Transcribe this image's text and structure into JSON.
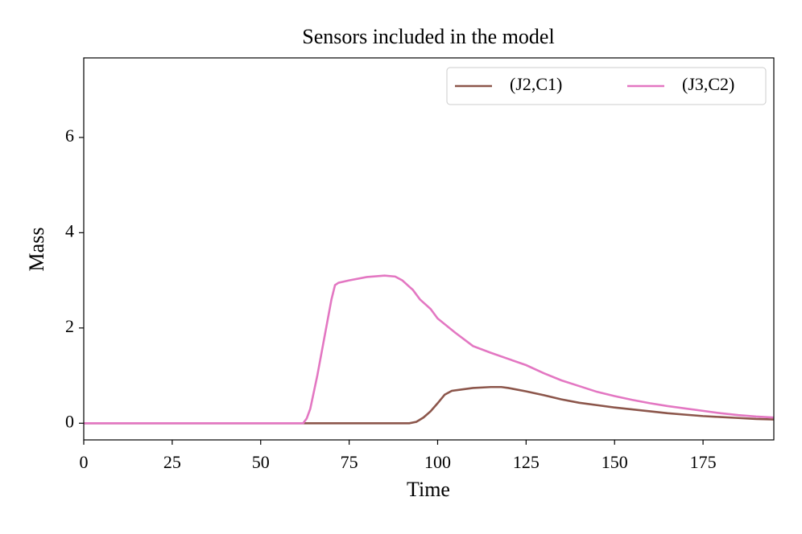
{
  "chart_data": {
    "type": "line",
    "title": "Sensors included in the model",
    "x_label": "Time",
    "y_label": "Mass",
    "xlim": [
      0,
      195
    ],
    "ylim": [
      -0.35,
      7.67
    ],
    "xticks": [
      0,
      25,
      50,
      75,
      100,
      125,
      150,
      175
    ],
    "yticks": [
      0,
      2,
      4,
      6
    ],
    "legend": "upper right",
    "grid": false,
    "series": [
      {
        "name": "(J2,C1)",
        "color": "#8c564b",
        "x": [
          0,
          25,
          50,
          75,
          92,
          94,
          96,
          98,
          100,
          102,
          104,
          107,
          110,
          115,
          118,
          120,
          125,
          130,
          135,
          140,
          145,
          150,
          155,
          160,
          165,
          170,
          175,
          180,
          185,
          190,
          195
        ],
        "values": [
          0,
          0,
          0,
          0,
          0,
          0.03,
          0.12,
          0.25,
          0.42,
          0.6,
          0.68,
          0.71,
          0.74,
          0.76,
          0.76,
          0.74,
          0.67,
          0.59,
          0.5,
          0.43,
          0.38,
          0.33,
          0.29,
          0.25,
          0.21,
          0.18,
          0.15,
          0.13,
          0.11,
          0.09,
          0.08
        ]
      },
      {
        "name": "(J3,C2)",
        "color": "#e377c2",
        "x": [
          0,
          25,
          50,
          62,
          63,
          64,
          66,
          68,
          70,
          71,
          72,
          75,
          80,
          85,
          88,
          90,
          93,
          95,
          98,
          100,
          105,
          110,
          115,
          120,
          125,
          130,
          135,
          140,
          145,
          150,
          155,
          160,
          165,
          170,
          175,
          180,
          185,
          190,
          195
        ],
        "values": [
          0,
          0,
          0,
          0,
          0.1,
          0.3,
          1.0,
          1.8,
          2.6,
          2.9,
          2.95,
          3.0,
          3.07,
          3.1,
          3.08,
          3.0,
          2.8,
          2.6,
          2.4,
          2.2,
          1.9,
          1.62,
          1.48,
          1.35,
          1.22,
          1.05,
          0.9,
          0.78,
          0.66,
          0.57,
          0.49,
          0.42,
          0.36,
          0.31,
          0.26,
          0.21,
          0.17,
          0.14,
          0.12
        ]
      }
    ]
  }
}
